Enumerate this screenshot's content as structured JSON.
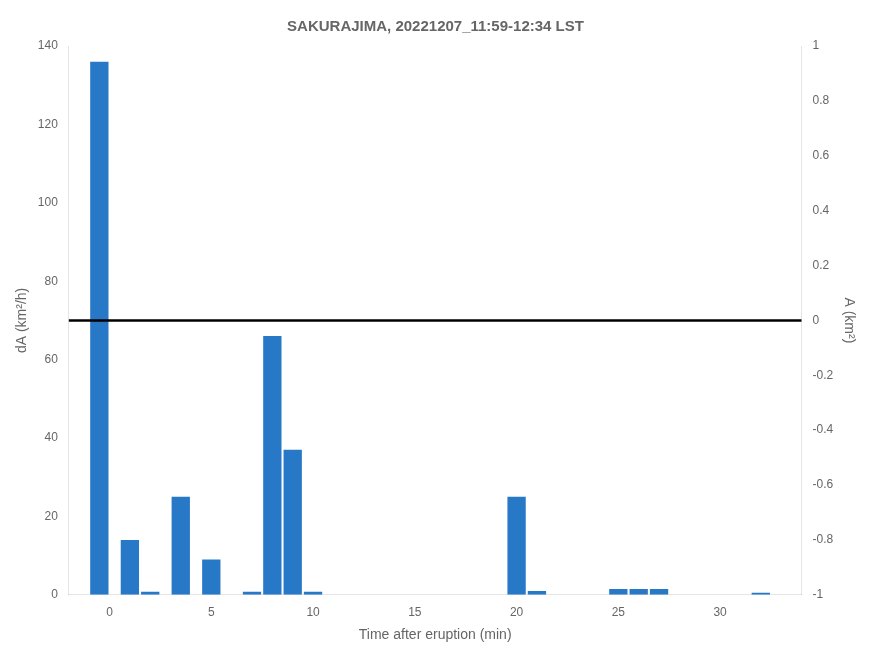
{
  "chart_data": {
    "type": "bar",
    "title": "SAKURAJIMA, 20221207_11:59-12:34 LST",
    "x": [
      -0.5,
      1,
      2,
      3.5,
      5,
      7,
      8,
      9,
      10,
      20,
      21,
      25,
      26,
      27,
      32
    ],
    "values": [
      136,
      14,
      0.8,
      25,
      9,
      0.8,
      66,
      37,
      0.8,
      25,
      1,
      1.5,
      1.5,
      1.5,
      0.5
    ],
    "color": "#2878C8",
    "xlabel": "Time after eruption (min)",
    "ylabel": "dA (km²/h)",
    "y2label": "A (km²)",
    "xlim": [
      -2,
      34
    ],
    "xticks": [
      0,
      5,
      10,
      15,
      20,
      25,
      30
    ],
    "ylim": [
      0,
      140
    ],
    "yticks": [
      0,
      20,
      40,
      60,
      80,
      100,
      120,
      140
    ],
    "y2lim": [
      -1,
      1
    ],
    "y2ticks": [
      -1,
      -0.8,
      -0.6,
      -0.4,
      -0.2,
      0,
      0.2,
      0.4,
      0.6,
      0.8,
      1
    ],
    "hline": {
      "y": 70,
      "color": "#000000"
    },
    "grid": false
  }
}
